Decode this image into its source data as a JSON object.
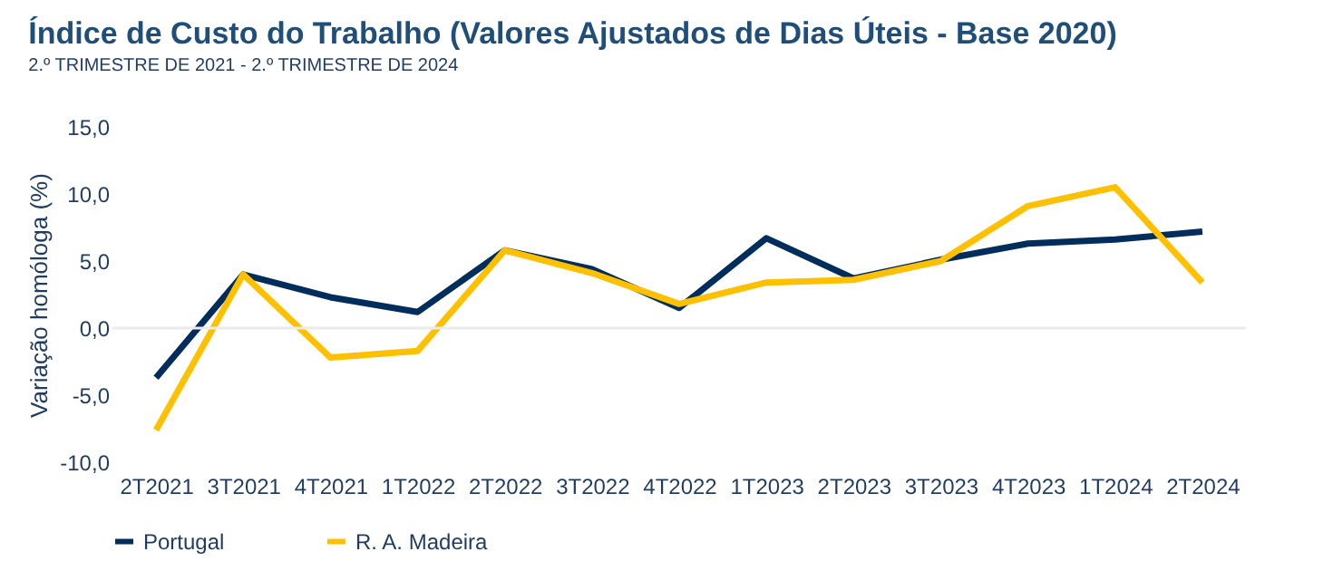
{
  "chart_data": {
    "type": "line",
    "title": "Índice de Custo do Trabalho (Valores Ajustados de Dias Úteis - Base 2020)",
    "subtitle": "2.º TRIMESTRE DE 2021 - 2.º TRIMESTRE DE 2024",
    "ylabel": "Variação homóloga (%)",
    "categories": [
      "2T2021",
      "3T2021",
      "4T2021",
      "1T2022",
      "2T2022",
      "3T2022",
      "4T2022",
      "1T2023",
      "2T2023",
      "3T2023",
      "4T2023",
      "1T2024",
      "2T2024"
    ],
    "series": [
      {
        "name": "Portugal",
        "color": "#002d5c",
        "values": [
          -3.7,
          4.0,
          2.3,
          1.2,
          5.8,
          4.4,
          1.5,
          6.7,
          3.7,
          5.1,
          6.3,
          6.6,
          7.2
        ]
      },
      {
        "name": "R. A. Madeira",
        "color": "#ffc000",
        "values": [
          -7.6,
          4.0,
          -2.2,
          -1.7,
          5.8,
          4.1,
          1.8,
          3.4,
          3.6,
          5.0,
          9.1,
          10.5,
          3.4
        ]
      }
    ],
    "ylim": [
      -10,
      15
    ],
    "yticks": [
      {
        "value": -10,
        "label": "-10,0"
      },
      {
        "value": -5,
        "label": "-5,0"
      },
      {
        "value": 0,
        "label": "0,0"
      },
      {
        "value": 5,
        "label": "5,0"
      },
      {
        "value": 10,
        "label": "10,0"
      },
      {
        "value": 15,
        "label": "15,0"
      }
    ],
    "ref_lines": [
      {
        "axis": "y",
        "value": 0,
        "label": null,
        "color": "#ebebeb"
      }
    ],
    "grid": false,
    "legend": "bottom",
    "marker": "none",
    "line_style": "solid"
  }
}
